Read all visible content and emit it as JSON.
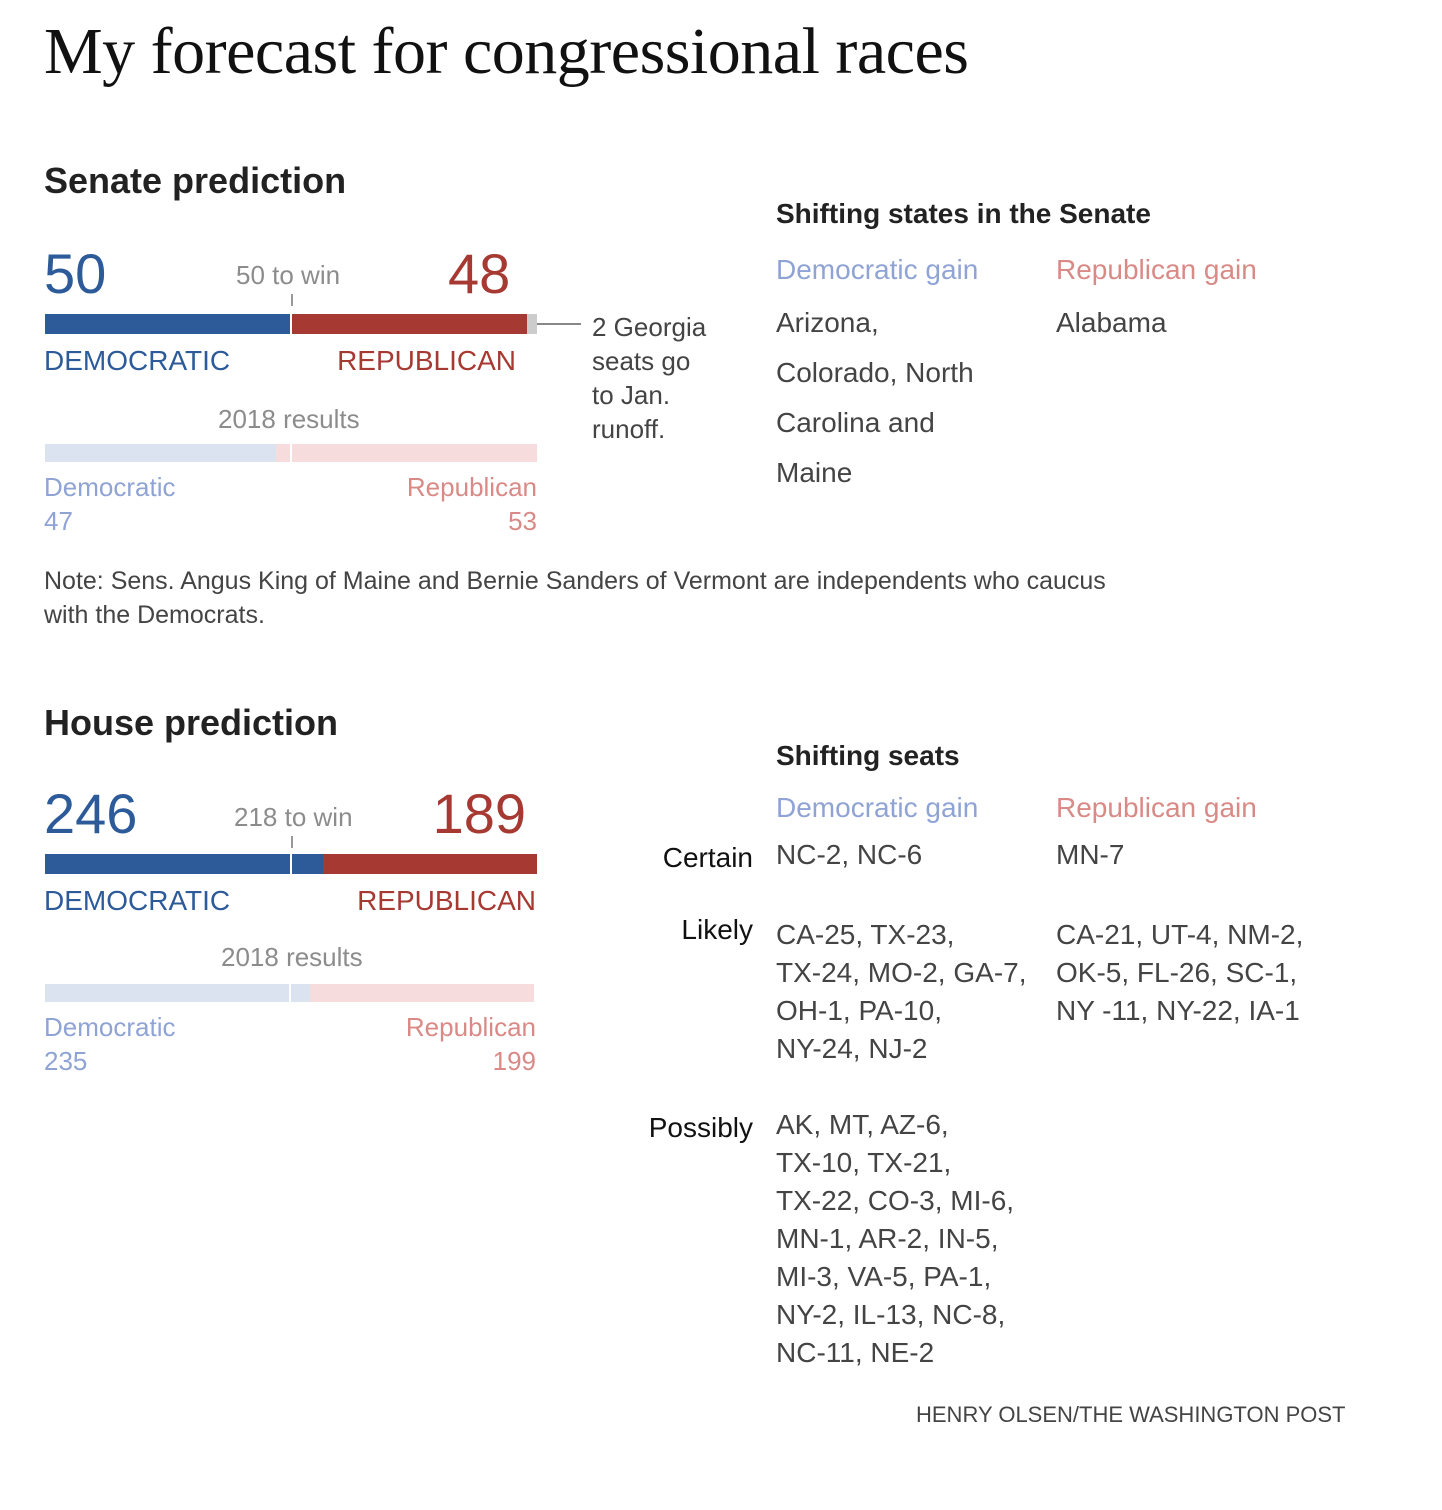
{
  "title": "My forecast for congressional races",
  "senate": {
    "heading": "Senate prediction",
    "dem": 50,
    "rep": 48,
    "other": 2,
    "total": 100,
    "to_win": "50 to win",
    "dem_label": "DEMOCRATIC",
    "rep_label": "REPUBLICAN",
    "annotation": [
      "2 Georgia",
      "seats go",
      "to Jan.",
      "runoff."
    ],
    "results_label": "2018 results",
    "prev_dem_label": "Democratic",
    "prev_dem": 47,
    "prev_rep_label": "Republican",
    "prev_rep": 53,
    "note": [
      "Note: Sens. Angus King of Maine and Bernie Sanders of Vermont are independents who caucus",
      "with the Democrats."
    ],
    "shifting_title": "Shifting states in the Senate",
    "dem_gain_label": "Democratic gain",
    "rep_gain_label": "Republican gain",
    "dem_gain": [
      "Arizona,",
      "Colorado, North",
      "Carolina and",
      "Maine"
    ],
    "rep_gain": [
      "Alabama"
    ]
  },
  "house": {
    "heading": "House prediction",
    "dem": 246,
    "rep": 189,
    "total": 435,
    "to_win": "218 to win",
    "dem_label": "DEMOCRATIC",
    "rep_label": "REPUBLICAN",
    "results_label": "2018 results",
    "prev_dem_label": "Democratic",
    "prev_dem": 235,
    "prev_rep_label": "Republican",
    "prev_rep": 199,
    "shifting_title": "Shifting seats",
    "dem_gain_label": "Democratic gain",
    "rep_gain_label": "Republican gain",
    "rows": [
      {
        "label": "Certain",
        "dem": [
          "NC-2, NC-6"
        ],
        "rep": [
          "MN-7"
        ]
      },
      {
        "label": "Likely",
        "dem": [
          "CA-25, TX-23,",
          "TX-24, MO-2, GA-7,",
          "OH-1, PA-10,",
          "NY-24, NJ-2"
        ],
        "rep": [
          "CA-21, UT-4, NM-2,",
          "OK-5, FL-26, SC-1,",
          "NY -11, NY-22, IA-1"
        ]
      },
      {
        "label": "Possibly",
        "dem": [
          "AK, MT, AZ-6,",
          "TX-10, TX-21,",
          "TX-22, CO-3, MI-6,",
          "MN-1, AR-2, IN-5,",
          "MI-3, VA-5, PA-1,",
          "NY-2, IL-13, NC-8,",
          "NC-11, NE-2"
        ],
        "rep": []
      }
    ]
  },
  "credit": "HENRY OLSEN/THE WASHINGTON POST",
  "colors": {
    "dem": "#2d5b9a",
    "rep": "#a63a32",
    "other": "#cccccc",
    "prev_dem": "#dbe3f0",
    "prev_rep": "#f6dcdc"
  },
  "chart_data": [
    {
      "type": "bar",
      "title": "Senate prediction",
      "categories": [
        "Democratic",
        "Republican",
        "Runoff"
      ],
      "values": [
        50,
        48,
        2
      ],
      "threshold": 50,
      "previous": {
        "Democratic": 47,
        "Republican": 53
      }
    },
    {
      "type": "bar",
      "title": "House prediction",
      "categories": [
        "Democratic",
        "Republican"
      ],
      "values": [
        246,
        189
      ],
      "threshold": 218,
      "previous": {
        "Democratic": 235,
        "Republican": 199
      }
    }
  ]
}
